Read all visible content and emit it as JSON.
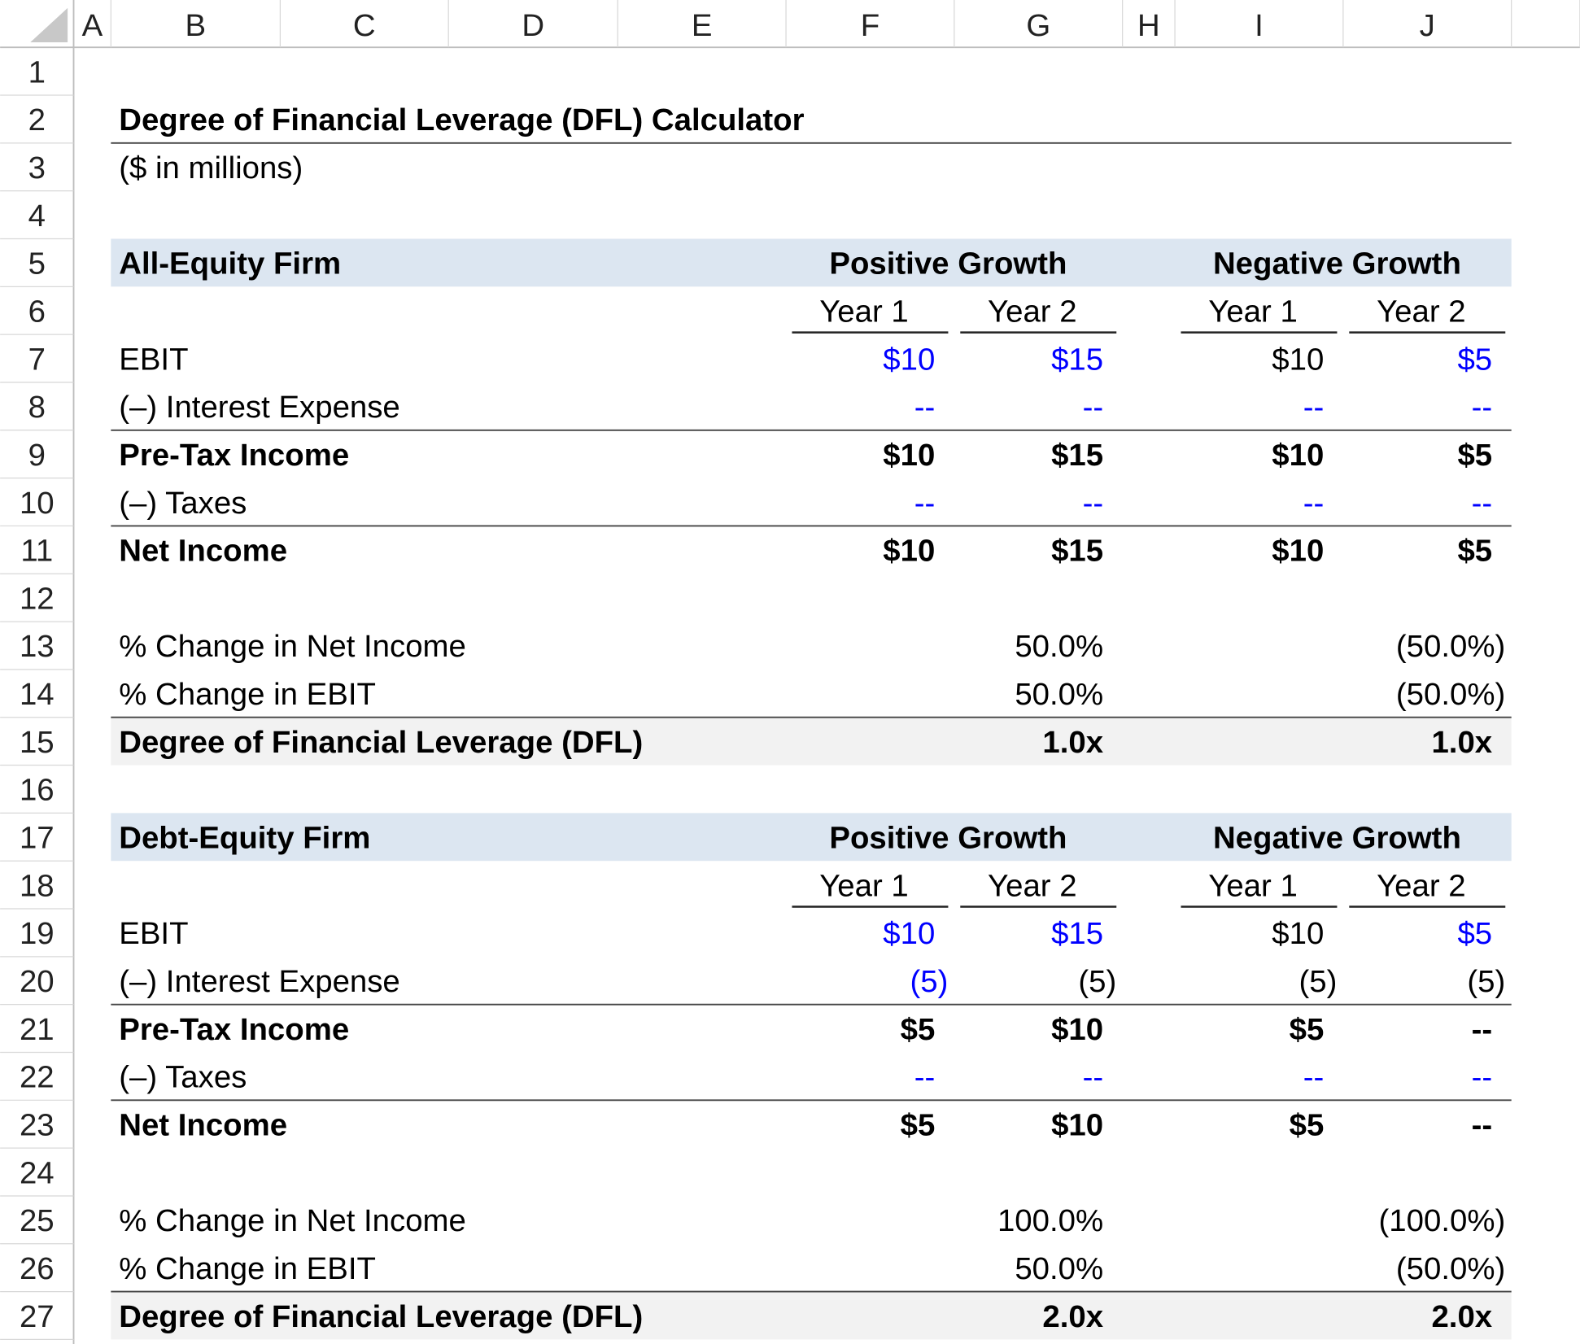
{
  "column_headers": [
    "A",
    "B",
    "C",
    "D",
    "E",
    "F",
    "G",
    "H",
    "I",
    "J"
  ],
  "row_numbers": [
    1,
    2,
    3,
    4,
    5,
    6,
    7,
    8,
    9,
    10,
    11,
    12,
    13,
    14,
    15,
    16,
    17,
    18,
    19,
    20,
    21,
    22,
    23,
    24,
    25,
    26,
    27
  ],
  "title": "Degree of Financial Leverage (DFL) Calculator",
  "subtitle": "($ in millions)",
  "sections": [
    {
      "label": "All-Equity Firm",
      "groups": [
        "Positive Growth",
        "Negative Growth"
      ],
      "years": [
        "Year 1",
        "Year 2",
        "Year 1",
        "Year 2"
      ],
      "items": [
        {
          "label": "EBIT",
          "values": [
            "$10",
            "$15",
            "$10",
            "$5"
          ]
        },
        {
          "label": "(–) Interest Expense",
          "values": [
            "--",
            "--",
            "--",
            "--"
          ]
        },
        {
          "label": "Pre-Tax Income",
          "values": [
            "$10",
            "$15",
            "$10",
            "$5"
          ]
        },
        {
          "label": "(–) Taxes",
          "values": [
            "--",
            "--",
            "--",
            "--"
          ]
        },
        {
          "label": "Net Income",
          "values": [
            "$10",
            "$15",
            "$10",
            "$5"
          ]
        }
      ],
      "changes": [
        {
          "label": "% Change in Net Income",
          "values": [
            "50.0%",
            "(50.0%)"
          ]
        },
        {
          "label": "% Change in EBIT",
          "values": [
            "50.0%",
            "(50.0%)"
          ]
        }
      ],
      "dfl": {
        "label": "Degree of Financial Leverage (DFL)",
        "values": [
          "1.0x",
          "1.0x"
        ]
      }
    },
    {
      "label": "Debt-Equity Firm",
      "groups": [
        "Positive Growth",
        "Negative Growth"
      ],
      "years": [
        "Year 1",
        "Year 2",
        "Year 1",
        "Year 2"
      ],
      "items": [
        {
          "label": "EBIT",
          "values": [
            "$10",
            "$15",
            "$10",
            "$5"
          ]
        },
        {
          "label": "(–) Interest Expense",
          "values": [
            "(5)",
            "(5)",
            "(5)",
            "(5)"
          ]
        },
        {
          "label": "Pre-Tax Income",
          "values": [
            "$5",
            "$10",
            "$5",
            "--"
          ]
        },
        {
          "label": "(–) Taxes",
          "values": [
            "--",
            "--",
            "--",
            "--"
          ]
        },
        {
          "label": "Net Income",
          "values": [
            "$5",
            "$10",
            "$5",
            "--"
          ]
        }
      ],
      "changes": [
        {
          "label": "% Change in Net Income",
          "values": [
            "100.0%",
            "(100.0%)"
          ]
        },
        {
          "label": "% Change in EBIT",
          "values": [
            "50.0%",
            "(50.0%)"
          ]
        }
      ],
      "dfl": {
        "label": "Degree of Financial Leverage (DFL)",
        "values": [
          "2.0x",
          "2.0x"
        ]
      }
    }
  ]
}
